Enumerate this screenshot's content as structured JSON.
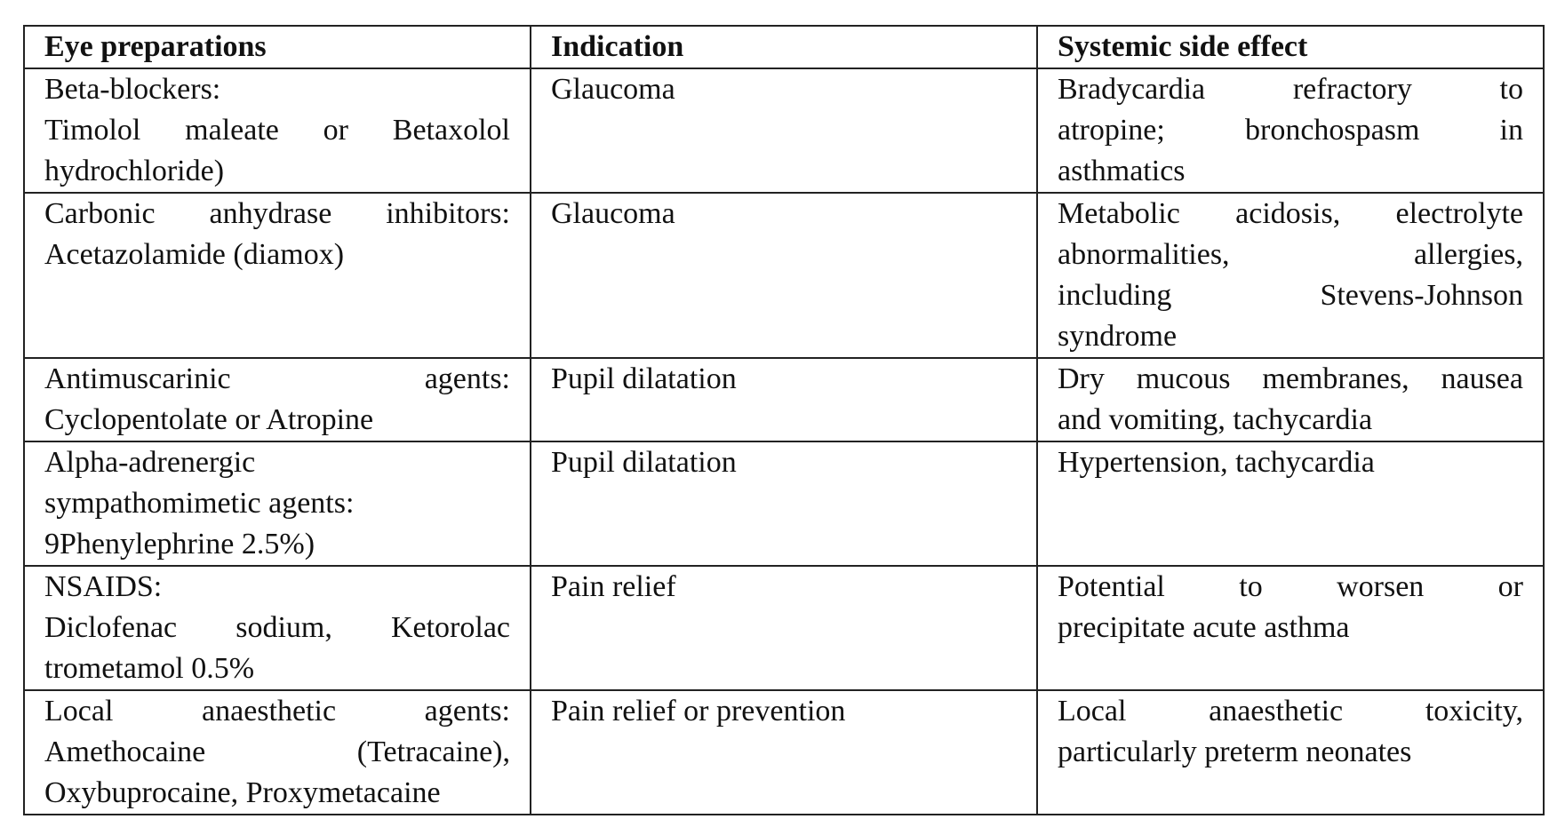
{
  "table": {
    "headers": [
      "Eye preparations",
      "Indication",
      "Systemic side effect"
    ],
    "rows": [
      {
        "preparation": [
          "Beta-blockers:",
          "Timolol maleate or Betaxolol",
          "hydrochloride)"
        ],
        "indication": "Glaucoma",
        "side_effect": [
          "Bradycardia refractory to",
          "atropine; bronchospasm in",
          "asthmatics"
        ]
      },
      {
        "preparation": [
          "Carbonic anhydrase inhibitors:",
          "Acetazolamide (diamox)"
        ],
        "indication": "Glaucoma",
        "side_effect": [
          "Metabolic acidosis, electrolyte",
          "abnormalities, allergies,",
          "including Stevens-Johnson",
          "syndrome"
        ]
      },
      {
        "preparation": [
          "Antimuscarinic agents:",
          "Cyclopentolate or Atropine"
        ],
        "indication": "Pupil dilatation",
        "side_effect": [
          "Dry mucous membranes, nausea",
          "and vomiting, tachycardia"
        ]
      },
      {
        "preparation": [
          "Alpha-adrenergic",
          "sympathomimetic agents:",
          "9Phenylephrine 2.5%)"
        ],
        "indication": "Pupil dilatation",
        "side_effect": [
          "Hypertension, tachycardia"
        ]
      },
      {
        "preparation": [
          "NSAIDS:",
          "Diclofenac sodium, Ketorolac",
          "trometamol 0.5%"
        ],
        "indication": "Pain relief",
        "side_effect": [
          "Potential to worsen or",
          "precipitate acute asthma"
        ]
      },
      {
        "preparation": [
          "Local anaesthetic agents:",
          "Amethocaine (Tetracaine),",
          "Oxybuprocaine, Proxymetacaine"
        ],
        "indication": "Pain relief or prevention",
        "side_effect": [
          "Local anaesthetic toxicity,",
          "particularly preterm neonates"
        ]
      }
    ]
  }
}
